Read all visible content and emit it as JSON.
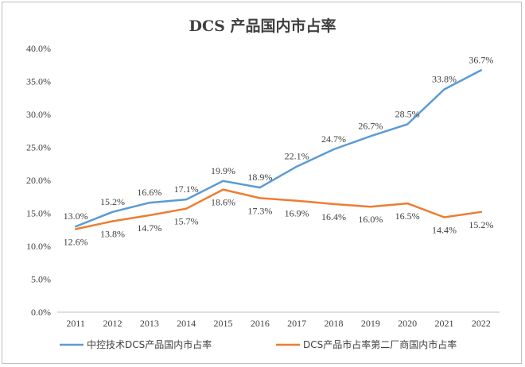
{
  "chart_data": {
    "type": "line",
    "title": "DCS 产品国内市占率",
    "categories": [
      "2011",
      "2012",
      "2013",
      "2014",
      "2015",
      "2016",
      "2017",
      "2018",
      "2019",
      "2020",
      "2021",
      "2022"
    ],
    "series": [
      {
        "name": "中控技术DCS产品国内市占率",
        "color": "#5B9BD5",
        "values": [
          13.0,
          15.2,
          16.6,
          17.1,
          19.9,
          18.9,
          22.1,
          24.7,
          26.7,
          28.5,
          33.8,
          36.7
        ],
        "labels": [
          "13.0%",
          "15.2%",
          "16.6%",
          "17.1%",
          "19.9%",
          "18.9%",
          "22.1%",
          "24.7%",
          "26.7%",
          "28.5%",
          "33.8%",
          "36.7%"
        ]
      },
      {
        "name": "DCS产品市占率第二厂商国内市占率",
        "color": "#ED7D31",
        "values": [
          12.6,
          13.8,
          14.7,
          15.7,
          18.6,
          17.3,
          16.9,
          16.4,
          16.0,
          16.5,
          14.4,
          15.2
        ],
        "labels": [
          "12.6%",
          "13.8%",
          "14.7%",
          "15.7%",
          "18.6%",
          "17.3%",
          "16.9%",
          "16.4%",
          "16.0%",
          "16.5%",
          "14.4%",
          "15.2%"
        ]
      }
    ],
    "yticks": [
      "0.0%",
      "5.0%",
      "10.0%",
      "15.0%",
      "20.0%",
      "25.0%",
      "30.0%",
      "35.0%",
      "40.0%"
    ],
    "ylim": [
      0,
      40
    ],
    "grid": false,
    "legend": "bottom"
  }
}
